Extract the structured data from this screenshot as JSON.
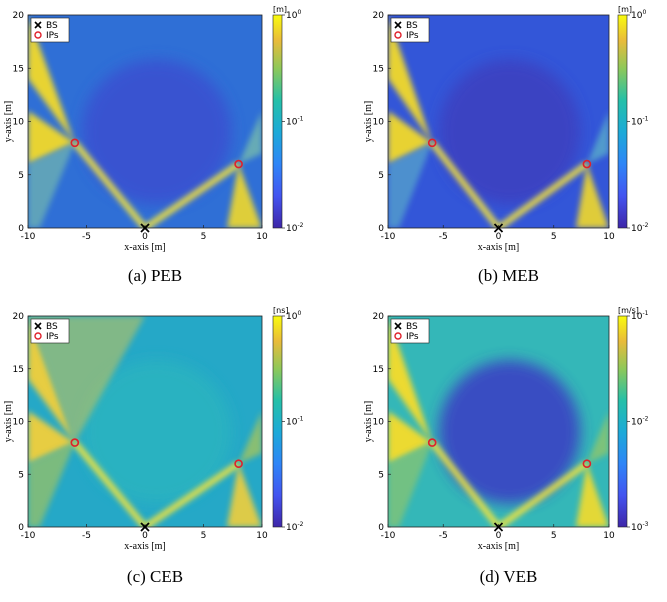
{
  "chart_data": [
    {
      "type": "heatmap",
      "caption": "(a) PEB",
      "xlabel": "x-axis [m]",
      "ylabel": "y-axis [m]",
      "xlim": [
        -10,
        10
      ],
      "ylim": [
        0,
        20
      ],
      "xticks": [
        -10,
        -5,
        0,
        5,
        10
      ],
      "yticks": [
        0,
        5,
        10,
        15,
        20
      ],
      "colorbar": {
        "unit": "[m]",
        "scale": "log",
        "ticks": [
          "10^0",
          "10^-1",
          "10^-2"
        ],
        "range": [
          0.01,
          1
        ]
      },
      "legend": {
        "placement": "top-left",
        "entries": [
          {
            "label": "BS",
            "marker": "x",
            "color": "#000000"
          },
          {
            "label": "IPs",
            "marker": "o",
            "color": "#e0202a"
          }
        ]
      },
      "BS": [
        0,
        0
      ],
      "IPs": [
        [
          -6,
          8
        ],
        [
          8,
          6
        ]
      ]
    },
    {
      "type": "heatmap",
      "caption": "(b) MEB",
      "xlabel": "x-axis [m]",
      "ylabel": "y-axis [m]",
      "xlim": [
        -10,
        10
      ],
      "ylim": [
        0,
        20
      ],
      "xticks": [
        -10,
        -5,
        0,
        5,
        10
      ],
      "yticks": [
        0,
        5,
        10,
        15,
        20
      ],
      "colorbar": {
        "unit": "[m]",
        "scale": "log",
        "ticks": [
          "10^0",
          "10^-1",
          "10^-2"
        ],
        "range": [
          0.01,
          1
        ]
      },
      "legend": {
        "placement": "top-left",
        "entries": [
          {
            "label": "BS",
            "marker": "x",
            "color": "#000000"
          },
          {
            "label": "IPs",
            "marker": "o",
            "color": "#e0202a"
          }
        ]
      },
      "BS": [
        0,
        0
      ],
      "IPs": [
        [
          -6,
          8
        ],
        [
          8,
          6
        ]
      ]
    },
    {
      "type": "heatmap",
      "caption": "(c) CEB",
      "xlabel": "x-axis [m]",
      "ylabel": "y-axis [m]",
      "xlim": [
        -10,
        10
      ],
      "ylim": [
        0,
        20
      ],
      "xticks": [
        -10,
        -5,
        0,
        5,
        10
      ],
      "yticks": [
        0,
        5,
        10,
        15,
        20
      ],
      "colorbar": {
        "unit": "[ns]",
        "scale": "log",
        "ticks": [
          "10^0",
          "10^-1",
          "10^-2"
        ],
        "range": [
          0.01,
          1
        ]
      },
      "legend": {
        "placement": "top-left",
        "entries": [
          {
            "label": "BS",
            "marker": "x",
            "color": "#000000"
          },
          {
            "label": "IPs",
            "marker": "o",
            "color": "#e0202a"
          }
        ]
      },
      "BS": [
        0,
        0
      ],
      "IPs": [
        [
          -6,
          8
        ],
        [
          8,
          6
        ]
      ]
    },
    {
      "type": "heatmap",
      "caption": "(d) VEB",
      "xlabel": "x-axis [m]",
      "ylabel": "y-axis [m]",
      "xlim": [
        -10,
        10
      ],
      "ylim": [
        0,
        20
      ],
      "xticks": [
        -10,
        -5,
        0,
        5,
        10
      ],
      "yticks": [
        0,
        5,
        10,
        15,
        20
      ],
      "colorbar": {
        "unit": "[m/s]",
        "scale": "log",
        "ticks": [
          "10^-1",
          "10^-2",
          "10^-3"
        ],
        "range": [
          0.001,
          0.1
        ]
      },
      "legend": {
        "placement": "top-left",
        "entries": [
          {
            "label": "BS",
            "marker": "x",
            "color": "#000000"
          },
          {
            "label": "IPs",
            "marker": "o",
            "color": "#e0202a"
          }
        ]
      },
      "BS": [
        0,
        0
      ],
      "IPs": [
        [
          -6,
          8
        ],
        [
          8,
          6
        ]
      ]
    }
  ]
}
